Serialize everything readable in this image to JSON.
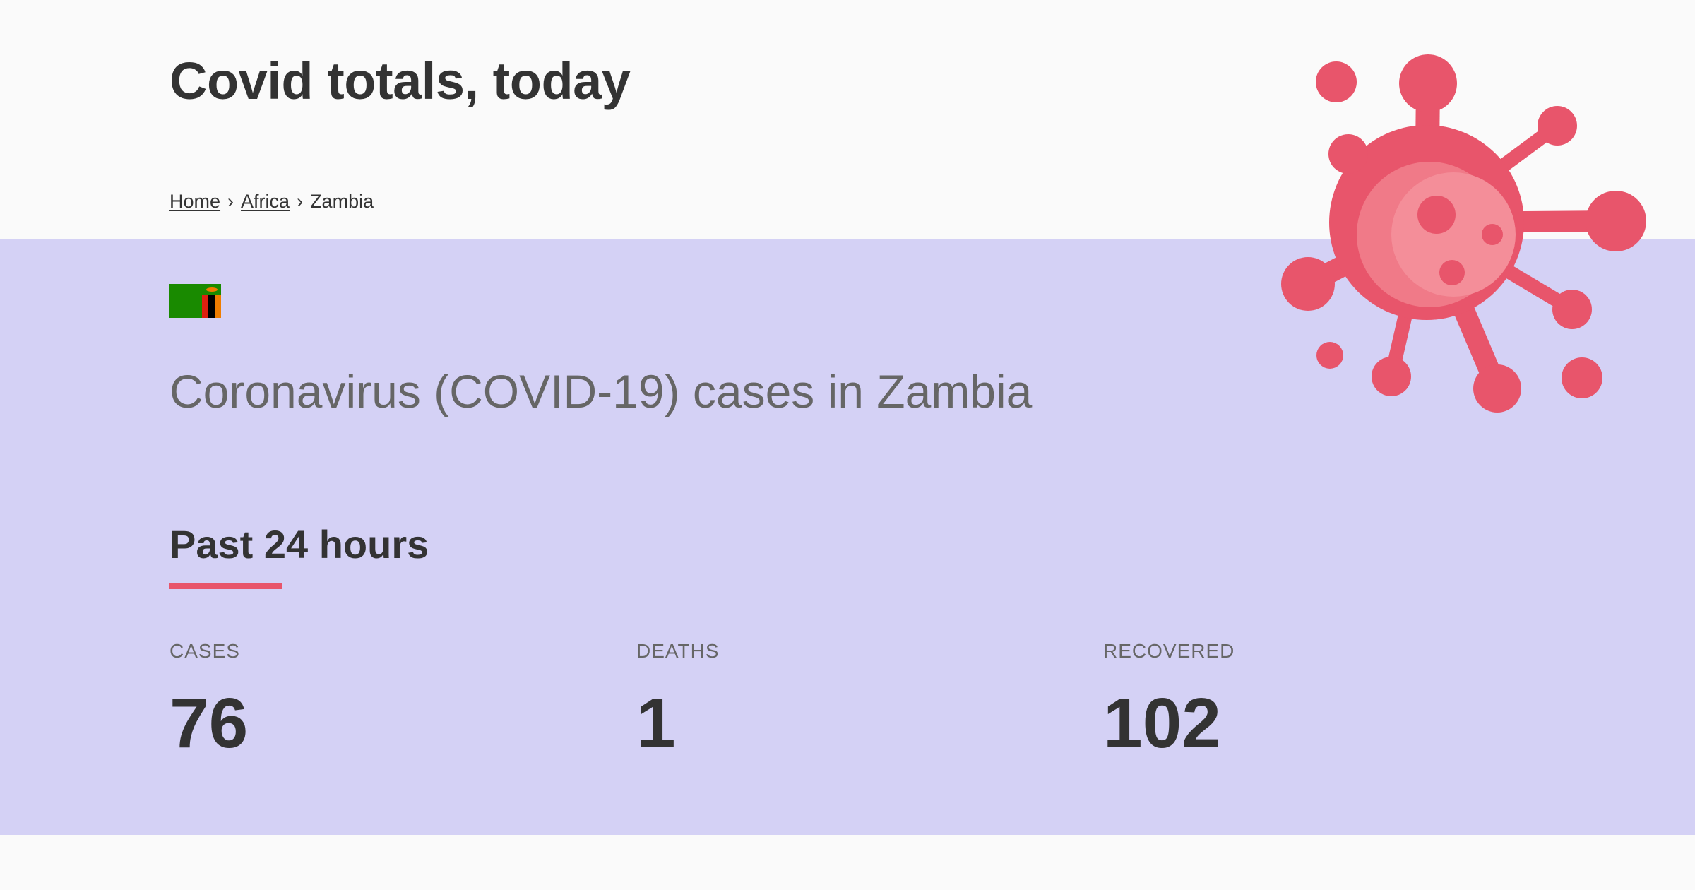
{
  "header": {
    "title": "Covid totals, today"
  },
  "breadcrumb": {
    "home": "Home",
    "separator": "›",
    "region": "Africa",
    "current": "Zambia"
  },
  "country": {
    "flag_icon": "zambia-flag-icon",
    "heading": "Coronavirus (COVID-19) cases in Zambia"
  },
  "section": {
    "title": "Past 24 hours"
  },
  "stats": {
    "cases_label": "CASES",
    "cases_value": "76",
    "deaths_label": "DEATHS",
    "deaths_value": "1",
    "recovered_label": "RECOVERED",
    "recovered_value": "102"
  },
  "colors": {
    "accent": "#e8556b",
    "band": "#d4d1f5",
    "page_background": "#fafafa",
    "text_dark": "#333333",
    "text_muted": "#666666"
  },
  "illustration": {
    "icon": "virus-icon"
  }
}
